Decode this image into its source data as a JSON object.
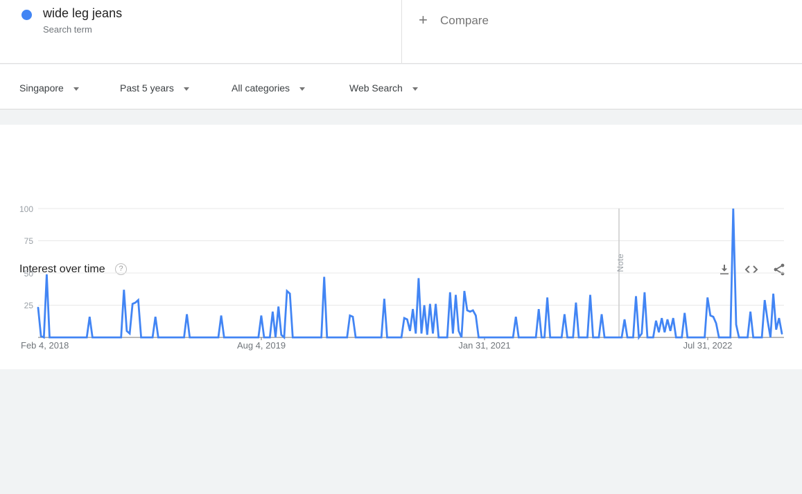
{
  "term_card": {
    "term": "wide leg jeans",
    "type_label": "Search term",
    "dot_color": "#4285f4"
  },
  "compare": {
    "plus": "+",
    "label": "Compare"
  },
  "filters": [
    {
      "label": "Singapore"
    },
    {
      "label": "Past 5 years"
    },
    {
      "label": "All categories"
    },
    {
      "label": "Web Search"
    }
  ],
  "panel": {
    "title": "Interest over time",
    "help_glyph": "?",
    "icons": [
      "download",
      "embed",
      "share"
    ]
  },
  "chart_data": {
    "type": "line",
    "title": "Interest over time",
    "series_name": "wide leg jeans",
    "region": "Singapore",
    "time_range": "Past 5 years",
    "line_color": "#4285f4",
    "ylim": [
      0,
      100
    ],
    "grid": true,
    "y_tick_labels": [
      "100",
      "75",
      "50",
      "25"
    ],
    "x_ticks": [
      "Feb 4, 2018",
      "Aug 4, 2019",
      "Jan 31, 2021",
      "Jul 31, 2022"
    ],
    "note_label": "Note",
    "note_week_index": 203,
    "values": [
      23,
      1,
      0,
      49,
      0,
      0,
      0,
      0,
      0,
      0,
      0,
      0,
      0,
      0,
      0,
      0,
      0,
      0,
      16,
      0,
      0,
      0,
      0,
      0,
      0,
      0,
      0,
      0,
      0,
      0,
      37,
      5,
      3,
      26,
      27,
      29,
      0,
      0,
      0,
      0,
      0,
      16,
      0,
      0,
      0,
      0,
      0,
      0,
      0,
      0,
      0,
      0,
      18,
      0,
      0,
      0,
      0,
      0,
      0,
      0,
      0,
      0,
      0,
      0,
      17,
      0,
      0,
      0,
      0,
      0,
      0,
      0,
      0,
      0,
      0,
      0,
      0,
      0,
      17,
      0,
      0,
      0,
      20,
      0,
      24,
      2,
      0,
      36,
      34,
      0,
      0,
      0,
      0,
      0,
      0,
      0,
      0,
      0,
      0,
      0,
      47,
      0,
      0,
      0,
      0,
      0,
      0,
      0,
      0,
      17,
      16,
      0,
      0,
      0,
      0,
      0,
      0,
      0,
      0,
      0,
      0,
      30,
      0,
      0,
      0,
      0,
      0,
      0,
      15,
      14,
      5,
      22,
      3,
      46,
      3,
      25,
      2,
      26,
      3,
      26,
      0,
      0,
      0,
      0,
      35,
      3,
      33,
      5,
      0,
      36,
      21,
      20,
      21,
      17,
      0,
      0,
      0,
      0,
      0,
      0,
      0,
      0,
      0,
      0,
      0,
      0,
      0,
      16,
      0,
      0,
      0,
      0,
      0,
      0,
      0,
      22,
      0,
      0,
      31,
      0,
      0,
      0,
      0,
      0,
      18,
      0,
      0,
      0,
      27,
      0,
      0,
      0,
      0,
      33,
      0,
      0,
      0,
      18,
      0,
      0,
      0,
      0,
      0,
      0,
      0,
      14,
      0,
      0,
      0,
      32,
      0,
      3,
      35,
      0,
      0,
      0,
      13,
      4,
      15,
      4,
      14,
      5,
      15,
      0,
      0,
      0,
      19,
      0,
      0,
      0,
      0,
      0,
      0,
      0,
      31,
      17,
      16,
      11,
      0,
      0,
      0,
      0,
      0,
      100,
      10,
      0,
      0,
      0,
      0,
      20,
      0,
      0,
      0,
      0,
      29,
      13,
      0,
      34,
      6,
      15,
      3
    ]
  }
}
